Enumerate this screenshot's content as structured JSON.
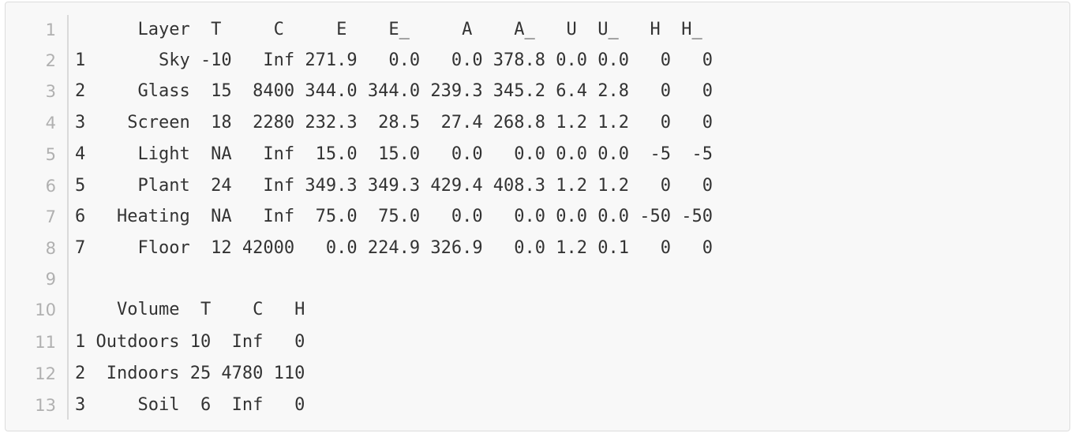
{
  "code_block": {
    "lines": [
      "      Layer  T     C     E    E_     A    A_   U  U_   H  H_",
      "1       Sky -10   Inf 271.9   0.0   0.0 378.8 0.0 0.0   0   0",
      "2     Glass  15  8400 344.0 344.0 239.3 345.2 6.4 2.8   0   0",
      "3    Screen  18  2280 232.3  28.5  27.4 268.8 1.2 1.2   0   0",
      "4     Light  NA   Inf  15.0  15.0   0.0   0.0 0.0 0.0  -5  -5",
      "5     Plant  24   Inf 349.3 349.3 429.4 408.3 1.2 1.2   0   0",
      "6   Heating  NA   Inf  75.0  75.0   0.0   0.0 0.0 0.0 -50 -50",
      "7     Floor  12 42000   0.0 224.9 326.9   0.0 1.2 0.1   0   0",
      "",
      "    Volume  T    C   H",
      "1 Outdoors 10  Inf   0",
      "2  Indoors 25 4780 110",
      "3     Soil  6  Inf   0"
    ],
    "line_numbers": [
      "1",
      "2",
      "3",
      "4",
      "5",
      "6",
      "7",
      "8",
      "9",
      "10",
      "11",
      "12",
      "13"
    ]
  }
}
